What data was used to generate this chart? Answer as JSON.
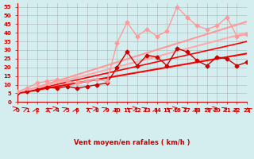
{
  "xlabel": "Vent moyen/en rafales ( km/h )",
  "ylabel": "",
  "background_color": "#d4eef0",
  "grid_color": "#aaaaaa",
  "xlim": [
    0,
    23
  ],
  "ylim": [
    0,
    57
  ],
  "yticks": [
    0,
    5,
    10,
    15,
    20,
    25,
    30,
    35,
    40,
    45,
    50,
    55
  ],
  "xticks": [
    0,
    1,
    2,
    3,
    4,
    5,
    6,
    7,
    8,
    9,
    10,
    11,
    12,
    13,
    14,
    15,
    16,
    17,
    18,
    19,
    20,
    21,
    22,
    23
  ],
  "lines": [
    {
      "x": [
        0,
        1,
        2,
        3,
        4,
        5,
        6,
        7,
        8,
        9,
        10,
        11,
        12,
        13,
        14,
        15,
        16,
        17,
        18,
        19,
        20,
        21,
        22,
        23
      ],
      "y": [
        5,
        6,
        7,
        8,
        9,
        10,
        11,
        12,
        13,
        14,
        15,
        16,
        17,
        18,
        19,
        20,
        21,
        22,
        23,
        24,
        25,
        26,
        27,
        28
      ],
      "color": "#ff0000",
      "lw": 1.5,
      "marker": null,
      "ls": "-"
    },
    {
      "x": [
        0,
        1,
        2,
        3,
        4,
        5,
        6,
        7,
        8,
        9,
        10,
        11,
        12,
        13,
        14,
        15,
        16,
        17,
        18,
        19,
        20,
        21,
        22,
        23
      ],
      "y": [
        5,
        6.3,
        7.6,
        8.9,
        10.2,
        11.5,
        12.8,
        14.1,
        15.4,
        16.7,
        18.0,
        19.3,
        20.6,
        21.9,
        23.2,
        24.5,
        25.8,
        27.1,
        28.4,
        29.7,
        31.0,
        32.3,
        33.6,
        35.0
      ],
      "color": "#ff0000",
      "lw": 1.2,
      "marker": null,
      "ls": "-"
    },
    {
      "x": [
        0,
        1,
        2,
        3,
        4,
        5,
        6,
        7,
        8,
        9,
        10,
        11,
        12,
        13,
        14,
        15,
        16,
        17,
        18,
        19,
        20,
        21,
        22,
        23
      ],
      "y": [
        5,
        6.8,
        8.6,
        10.4,
        12.2,
        14.0,
        15.8,
        17.6,
        19.4,
        21.2,
        23.0,
        24.8,
        26.6,
        28.4,
        30.2,
        32.0,
        33.8,
        35.6,
        37.4,
        39.2,
        41.0,
        42.8,
        44.6,
        46.5
      ],
      "color": "#ff9999",
      "lw": 1.5,
      "marker": null,
      "ls": "-"
    },
    {
      "x": [
        0,
        23
      ],
      "y": [
        5,
        40
      ],
      "color": "#ffaaaa",
      "lw": 1.5,
      "marker": null,
      "ls": "-"
    },
    {
      "x": [
        0,
        1,
        2,
        3,
        4,
        5,
        6,
        7,
        8,
        9,
        10,
        11,
        12,
        13,
        14,
        15,
        16,
        17,
        18,
        19,
        20,
        21,
        22,
        23
      ],
      "y": [
        5,
        6,
        7,
        8.5,
        8,
        9,
        8,
        9,
        10,
        11,
        20,
        29,
        21,
        27,
        26,
        21,
        31,
        29,
        24,
        21,
        26,
        25,
        21,
        23
      ],
      "color": "#cc0000",
      "lw": 1.0,
      "marker": "D",
      "ms": 2.5,
      "ls": "-"
    },
    {
      "x": [
        0,
        1,
        2,
        3,
        4,
        5,
        6,
        7,
        8,
        9,
        10,
        11,
        12,
        13,
        14,
        15,
        16,
        17,
        18,
        19,
        20,
        21,
        22,
        23
      ],
      "y": [
        6,
        8,
        11,
        12,
        13,
        12,
        11,
        12,
        13,
        12,
        34,
        46,
        38,
        42,
        38,
        41,
        55,
        49,
        44,
        42,
        44,
        49,
        38,
        39
      ],
      "color": "#ff9999",
      "lw": 1.0,
      "marker": "D",
      "ms": 2.5,
      "ls": "-"
    }
  ],
  "wind_arrows": {
    "x": [
      0,
      1,
      2,
      3,
      4,
      5,
      6,
      7,
      8,
      9,
      10,
      11,
      12,
      13,
      14,
      15,
      16,
      17,
      18,
      19,
      20,
      21,
      22,
      23
    ],
    "color": "#cc0000"
  }
}
